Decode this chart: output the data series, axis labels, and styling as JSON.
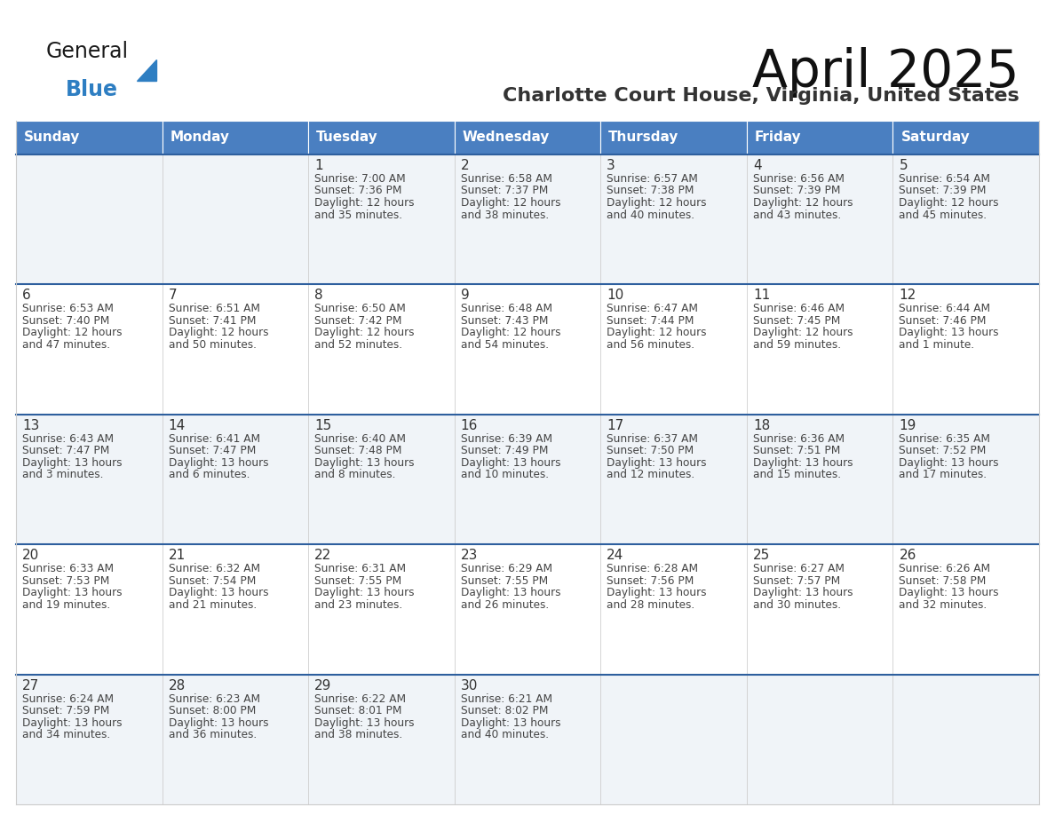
{
  "title": "April 2025",
  "subtitle": "Charlotte Court House, Virginia, United States",
  "header_color": "#4A7FC1",
  "header_text_color": "#FFFFFF",
  "cell_bg_even": "#F0F4F8",
  "cell_bg_odd": "#FFFFFF",
  "row_border_color": "#2E5F9E",
  "cell_border_color": "#CCCCCC",
  "day_headers": [
    "Sunday",
    "Monday",
    "Tuesday",
    "Wednesday",
    "Thursday",
    "Friday",
    "Saturday"
  ],
  "text_color": "#444444",
  "number_color": "#333333",
  "logo_general_color": "#1A1A1A",
  "logo_blue_color": "#2E7EC2",
  "weeks": [
    {
      "days": [
        {
          "date": "",
          "sunrise": "",
          "sunset": "",
          "daylight": ""
        },
        {
          "date": "",
          "sunrise": "",
          "sunset": "",
          "daylight": ""
        },
        {
          "date": "1",
          "sunrise": "7:00 AM",
          "sunset": "7:36 PM",
          "daylight": "12 hours\nand 35 minutes."
        },
        {
          "date": "2",
          "sunrise": "6:58 AM",
          "sunset": "7:37 PM",
          "daylight": "12 hours\nand 38 minutes."
        },
        {
          "date": "3",
          "sunrise": "6:57 AM",
          "sunset": "7:38 PM",
          "daylight": "12 hours\nand 40 minutes."
        },
        {
          "date": "4",
          "sunrise": "6:56 AM",
          "sunset": "7:39 PM",
          "daylight": "12 hours\nand 43 minutes."
        },
        {
          "date": "5",
          "sunrise": "6:54 AM",
          "sunset": "7:39 PM",
          "daylight": "12 hours\nand 45 minutes."
        }
      ]
    },
    {
      "days": [
        {
          "date": "6",
          "sunrise": "6:53 AM",
          "sunset": "7:40 PM",
          "daylight": "12 hours\nand 47 minutes."
        },
        {
          "date": "7",
          "sunrise": "6:51 AM",
          "sunset": "7:41 PM",
          "daylight": "12 hours\nand 50 minutes."
        },
        {
          "date": "8",
          "sunrise": "6:50 AM",
          "sunset": "7:42 PM",
          "daylight": "12 hours\nand 52 minutes."
        },
        {
          "date": "9",
          "sunrise": "6:48 AM",
          "sunset": "7:43 PM",
          "daylight": "12 hours\nand 54 minutes."
        },
        {
          "date": "10",
          "sunrise": "6:47 AM",
          "sunset": "7:44 PM",
          "daylight": "12 hours\nand 56 minutes."
        },
        {
          "date": "11",
          "sunrise": "6:46 AM",
          "sunset": "7:45 PM",
          "daylight": "12 hours\nand 59 minutes."
        },
        {
          "date": "12",
          "sunrise": "6:44 AM",
          "sunset": "7:46 PM",
          "daylight": "13 hours\nand 1 minute."
        }
      ]
    },
    {
      "days": [
        {
          "date": "13",
          "sunrise": "6:43 AM",
          "sunset": "7:47 PM",
          "daylight": "13 hours\nand 3 minutes."
        },
        {
          "date": "14",
          "sunrise": "6:41 AM",
          "sunset": "7:47 PM",
          "daylight": "13 hours\nand 6 minutes."
        },
        {
          "date": "15",
          "sunrise": "6:40 AM",
          "sunset": "7:48 PM",
          "daylight": "13 hours\nand 8 minutes."
        },
        {
          "date": "16",
          "sunrise": "6:39 AM",
          "sunset": "7:49 PM",
          "daylight": "13 hours\nand 10 minutes."
        },
        {
          "date": "17",
          "sunrise": "6:37 AM",
          "sunset": "7:50 PM",
          "daylight": "13 hours\nand 12 minutes."
        },
        {
          "date": "18",
          "sunrise": "6:36 AM",
          "sunset": "7:51 PM",
          "daylight": "13 hours\nand 15 minutes."
        },
        {
          "date": "19",
          "sunrise": "6:35 AM",
          "sunset": "7:52 PM",
          "daylight": "13 hours\nand 17 minutes."
        }
      ]
    },
    {
      "days": [
        {
          "date": "20",
          "sunrise": "6:33 AM",
          "sunset": "7:53 PM",
          "daylight": "13 hours\nand 19 minutes."
        },
        {
          "date": "21",
          "sunrise": "6:32 AM",
          "sunset": "7:54 PM",
          "daylight": "13 hours\nand 21 minutes."
        },
        {
          "date": "22",
          "sunrise": "6:31 AM",
          "sunset": "7:55 PM",
          "daylight": "13 hours\nand 23 minutes."
        },
        {
          "date": "23",
          "sunrise": "6:29 AM",
          "sunset": "7:55 PM",
          "daylight": "13 hours\nand 26 minutes."
        },
        {
          "date": "24",
          "sunrise": "6:28 AM",
          "sunset": "7:56 PM",
          "daylight": "13 hours\nand 28 minutes."
        },
        {
          "date": "25",
          "sunrise": "6:27 AM",
          "sunset": "7:57 PM",
          "daylight": "13 hours\nand 30 minutes."
        },
        {
          "date": "26",
          "sunrise": "6:26 AM",
          "sunset": "7:58 PM",
          "daylight": "13 hours\nand 32 minutes."
        }
      ]
    },
    {
      "days": [
        {
          "date": "27",
          "sunrise": "6:24 AM",
          "sunset": "7:59 PM",
          "daylight": "13 hours\nand 34 minutes."
        },
        {
          "date": "28",
          "sunrise": "6:23 AM",
          "sunset": "8:00 PM",
          "daylight": "13 hours\nand 36 minutes."
        },
        {
          "date": "29",
          "sunrise": "6:22 AM",
          "sunset": "8:01 PM",
          "daylight": "13 hours\nand 38 minutes."
        },
        {
          "date": "30",
          "sunrise": "6:21 AM",
          "sunset": "8:02 PM",
          "daylight": "13 hours\nand 40 minutes."
        },
        {
          "date": "",
          "sunrise": "",
          "sunset": "",
          "daylight": ""
        },
        {
          "date": "",
          "sunrise": "",
          "sunset": "",
          "daylight": ""
        },
        {
          "date": "",
          "sunrise": "",
          "sunset": "",
          "daylight": ""
        }
      ]
    }
  ]
}
